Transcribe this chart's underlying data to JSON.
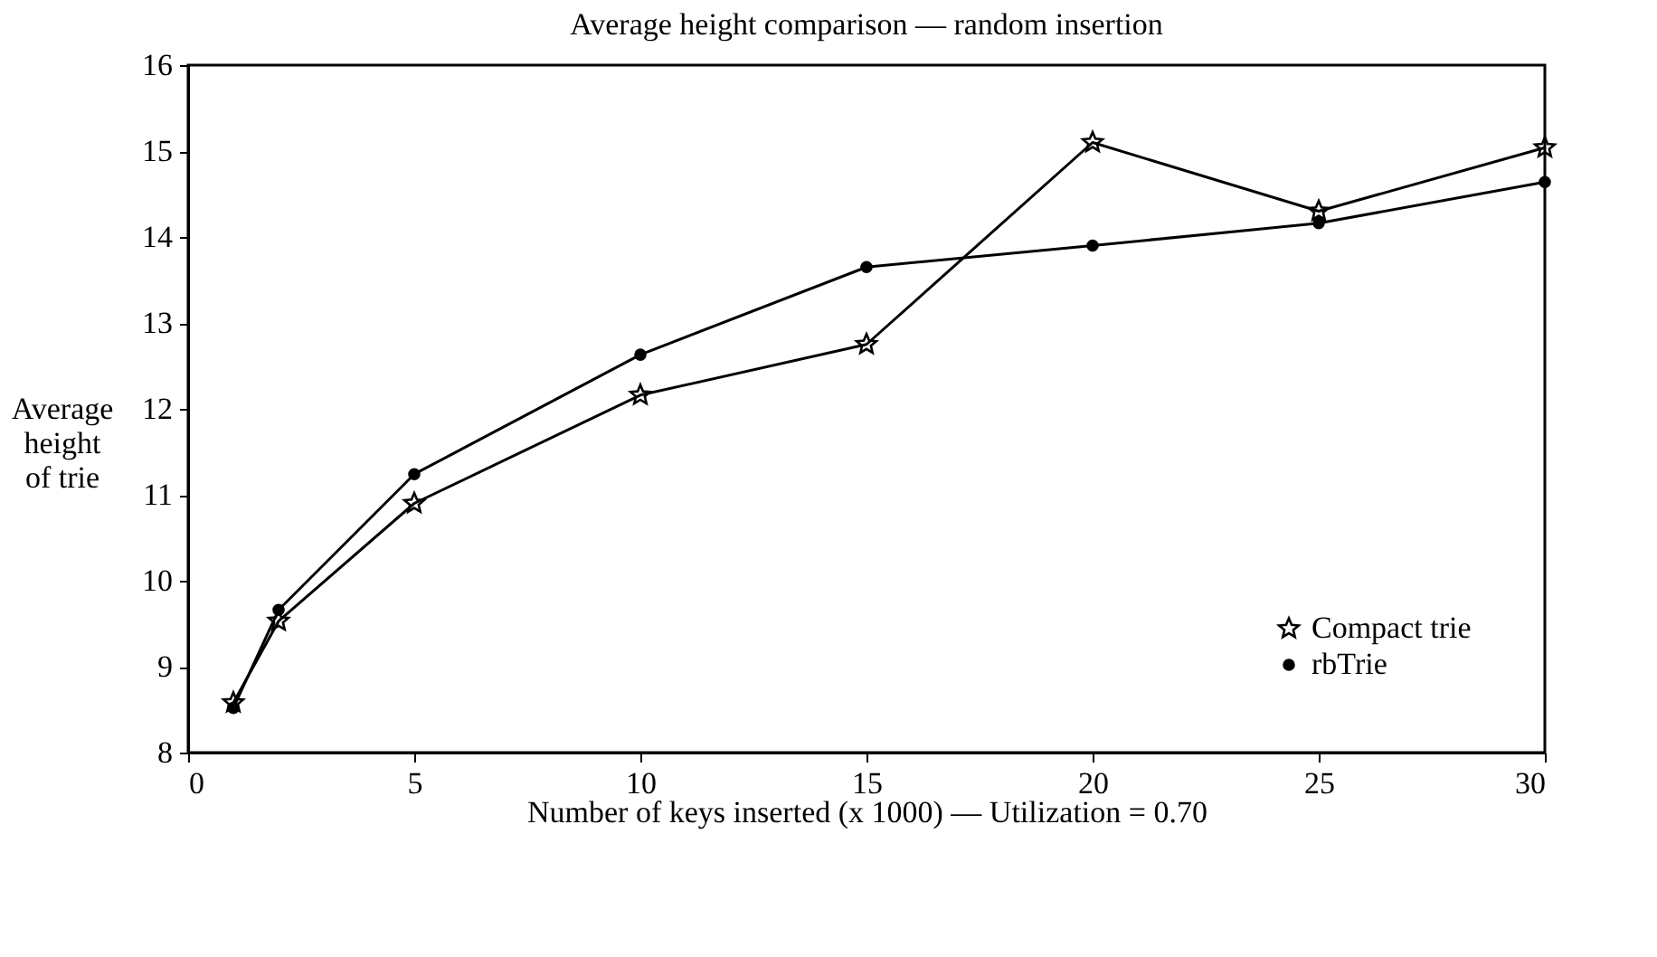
{
  "chart_data": {
    "type": "line",
    "title": "Average height comparison — random insertion",
    "xlabel": "Number of keys inserted (x 1000) — Utilization = 0.70",
    "ylabel": "Average height of trie",
    "x": [
      1,
      2,
      5,
      10,
      15,
      20,
      25,
      30
    ],
    "series": [
      {
        "name": "Compact trie",
        "color": "#000000",
        "marker": "star",
        "values": [
          8.58,
          9.53,
          10.9,
          12.16,
          12.75,
          15.1,
          14.3,
          15.04
        ]
      },
      {
        "name": "rbTrie",
        "color": "#000000",
        "marker": "circle",
        "values": [
          8.52,
          9.66,
          11.24,
          12.63,
          13.65,
          13.9,
          14.16,
          14.64
        ]
      }
    ],
    "xlim": [
      0,
      30
    ],
    "xticks": [
      0,
      5,
      10,
      15,
      20,
      25,
      30
    ],
    "ylim": [
      8,
      16
    ],
    "yticks": [
      8,
      9,
      10,
      11,
      12,
      13,
      14,
      15,
      16
    ],
    "grid": false,
    "legend": "bottom right",
    "line_style": "solid"
  }
}
